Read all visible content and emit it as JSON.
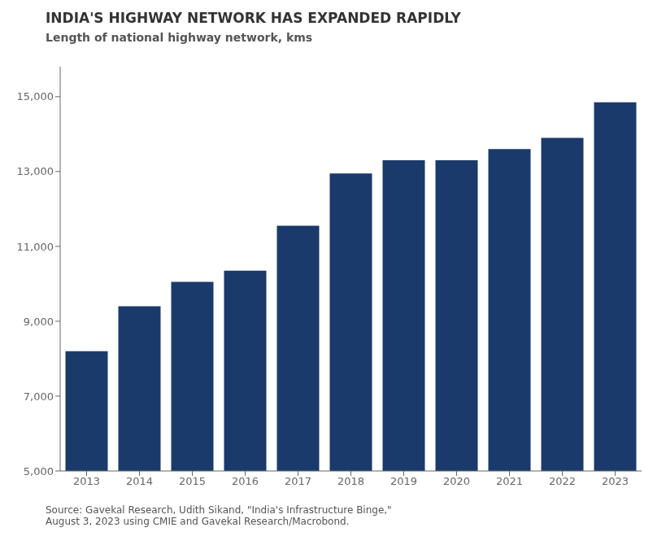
{
  "chart_data": {
    "type": "bar",
    "title": "INDIA'S HIGHWAY NETWORK HAS EXPANDED RAPIDLY",
    "subtitle": "Length of national highway network, kms",
    "annotations": [
      "Source: Gavekal Research, Udith Sikand, \"India's Infrastructure Binge,\"\nAugust 3, 2023 using CMIE and Gavekal Research/Macrobond."
    ],
    "categories": [
      "2013",
      "2014",
      "2015",
      "2016",
      "2017",
      "2018",
      "2019",
      "2020",
      "2021",
      "2022",
      "2023"
    ],
    "values": [
      8200,
      9400,
      10050,
      10350,
      11550,
      12950,
      13300,
      13300,
      13600,
      13900,
      14850
    ],
    "color": "#1a3a6b",
    "ylim": [
      5000,
      15800
    ],
    "yticks": [
      {
        "value": 5000,
        "label": "5,000"
      },
      {
        "value": 7000,
        "label": "7,000"
      },
      {
        "value": 9000,
        "label": "9,000"
      },
      {
        "value": 11000,
        "label": "11,000"
      },
      {
        "value": 13000,
        "label": "13,000"
      },
      {
        "value": 15000,
        "label": "15,000"
      }
    ],
    "grid": false
  }
}
